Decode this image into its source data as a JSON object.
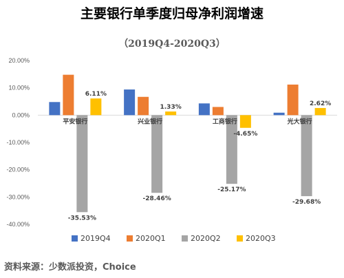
{
  "chart_data": {
    "type": "bar",
    "title": "主要银行单季度归母净利润增速",
    "subtitle": "（2019Q4-2020Q3）",
    "categories": [
      "平安银行",
      "兴业银行",
      "工商银行",
      "光大银行"
    ],
    "series": [
      {
        "name": "2019Q4",
        "color": "#4472C4",
        "values": [
          4.8,
          9.4,
          4.3,
          0.9
        ]
      },
      {
        "name": "2020Q1",
        "color": "#ED7D31",
        "values": [
          14.8,
          6.7,
          3.0,
          11.2
        ]
      },
      {
        "name": "2020Q2",
        "color": "#A5A5A5",
        "values": [
          -35.53,
          -28.46,
          -25.17,
          -29.68
        ]
      },
      {
        "name": "2020Q3",
        "color": "#FFC000",
        "values": [
          6.11,
          1.33,
          -4.65,
          2.62
        ]
      }
    ],
    "data_labels": {
      "2020Q2": [
        "-35.53%",
        "-28.46%",
        "-25.17%",
        "-29.68%"
      ],
      "2020Q3": [
        "6.11%",
        "1.33%",
        "-4.65%",
        "2.62%"
      ]
    },
    "ylim": [
      -40,
      20
    ],
    "yticks": [
      20,
      10,
      0,
      -10,
      -20,
      -30,
      -40
    ],
    "ytick_labels": [
      "20.00%",
      "10.00%",
      "0.00%",
      "-10.00%",
      "-20.00%",
      "-30.00%",
      "-40.00%"
    ],
    "grid": false,
    "legend_position": "bottom",
    "xlabel": "",
    "ylabel": ""
  },
  "source_note": "资料来源：少数派投资，Choice"
}
